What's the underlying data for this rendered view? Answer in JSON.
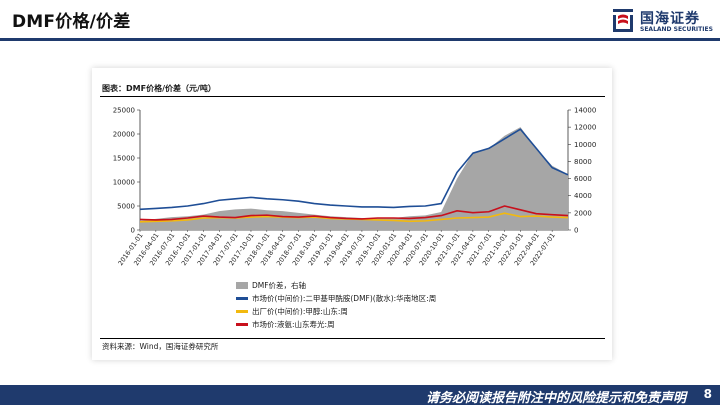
{
  "header": {
    "title": "DMF价格/价差",
    "logo_cn": "国海证券",
    "logo_en": "SEALAND SECURITIES"
  },
  "chart_caption": "图表：DMF价格/价差（元/吨）",
  "source": "资料来源：Wind，国海证券研究所",
  "footer": {
    "disclaimer": "请务必阅读报告附注中的风险提示和免责声明",
    "page": "8"
  },
  "colors": {
    "brand": "#1f3a6d",
    "spread": "#a6a6a6",
    "dmf": "#1f4e96",
    "methanol": "#f2b90f",
    "ammonia": "#c8101c"
  },
  "chart_data": {
    "type": "area",
    "x": [
      "2016-01-01",
      "2016-04-01",
      "2016-07-01",
      "2016-10-01",
      "2017-01-01",
      "2017-04-01",
      "2017-07-01",
      "2017-10-01",
      "2018-01-01",
      "2018-04-01",
      "2018-07-01",
      "2018-10-01",
      "2019-01-01",
      "2019-04-01",
      "2019-07-01",
      "2019-10-01",
      "2020-01-01",
      "2020-04-01",
      "2020-07-01",
      "2020-10-01",
      "2021-01-01",
      "2021-04-01",
      "2021-07-01",
      "2021-10-01",
      "2022-01-01",
      "2022-04-01",
      "2022-07-01",
      "2022-10-01"
    ],
    "x_tick_labels": [
      "2016-01-01",
      "2016-04-01",
      "2016-07-01",
      "2016-10-01",
      "2017-01-01",
      "2017-04-01",
      "2017-07-01",
      "2017-10-01",
      "2018-01-01",
      "2018-04-01",
      "2018-07-01",
      "2018-10-01",
      "2019-01-01",
      "2019-04-01",
      "2019-07-01",
      "2019-10-01",
      "2020-01-01",
      "2020-04-01",
      "2020-07-01",
      "2020-10-01",
      "2021-01-01",
      "2021-04-01",
      "2021-07-01",
      "2021-10-01",
      "2022-01-01",
      "2022-04-01",
      "2022-07-01"
    ],
    "y_left": {
      "min": 0,
      "max": 25000,
      "ticks": [
        0,
        5000,
        10000,
        15000,
        20000,
        25000
      ]
    },
    "y_right": {
      "min": 0,
      "max": 14000,
      "ticks": [
        0,
        2000,
        4000,
        6000,
        8000,
        10000,
        12000,
        14000
      ]
    },
    "series": [
      {
        "name": "DMF价差，右轴",
        "axis": "right",
        "kind": "area",
        "values": [
          1100,
          1300,
          1500,
          1600,
          1800,
          2200,
          2400,
          2500,
          2300,
          2200,
          2000,
          1800,
          1600,
          1500,
          1400,
          1400,
          1400,
          1600,
          1700,
          2100,
          6000,
          9000,
          9500,
          11000,
          12000,
          9500,
          7500,
          6500
        ]
      },
      {
        "name": "市场价(中间价):二甲基甲酰胺(DMF)(散水):华南地区:周",
        "axis": "left",
        "kind": "line",
        "values": [
          4300,
          4500,
          4700,
          5000,
          5500,
          6200,
          6500,
          6800,
          6500,
          6300,
          6000,
          5500,
          5200,
          5000,
          4800,
          4800,
          4700,
          4900,
          5000,
          5500,
          12000,
          16000,
          17000,
          19000,
          21000,
          17000,
          13000,
          11500
        ]
      },
      {
        "name": "出厂价(中间价):甲醇:山东:周",
        "axis": "left",
        "kind": "line",
        "values": [
          1700,
          1800,
          1900,
          2100,
          2500,
          2600,
          2500,
          2700,
          2800,
          2700,
          2600,
          2700,
          2400,
          2300,
          2200,
          2100,
          2000,
          1800,
          1900,
          2200,
          2500,
          2600,
          2700,
          3500,
          2800,
          2900,
          2700,
          2600
        ]
      },
      {
        "name": "市场价:液氨:山东寿光:周",
        "axis": "left",
        "kind": "line",
        "values": [
          2200,
          2100,
          2200,
          2500,
          2900,
          2700,
          2600,
          3000,
          3100,
          2800,
          2700,
          2900,
          2600,
          2400,
          2300,
          2500,
          2500,
          2400,
          2600,
          3000,
          4000,
          3600,
          3800,
          5000,
          4200,
          3400,
          3200,
          3000
        ]
      }
    ]
  }
}
